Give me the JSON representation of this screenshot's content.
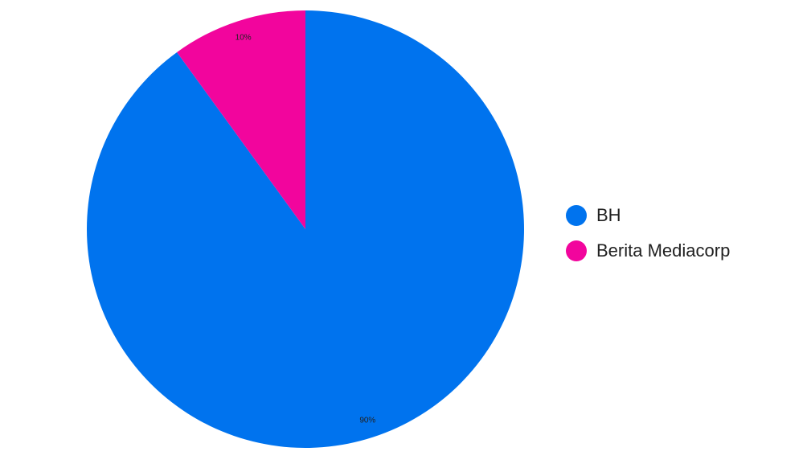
{
  "chart_data": {
    "type": "pie",
    "categories": [
      "BH",
      "Berita Mediacorp"
    ],
    "values": [
      90,
      10
    ],
    "labels": [
      "90%",
      "10%"
    ],
    "colors": [
      "#0073EE",
      "#F2059D"
    ],
    "legend_position": "right"
  },
  "legend": {
    "items": [
      {
        "label": "BH",
        "color": "#0073EE"
      },
      {
        "label": "Berita Mediacorp",
        "color": "#F2059D"
      }
    ]
  }
}
